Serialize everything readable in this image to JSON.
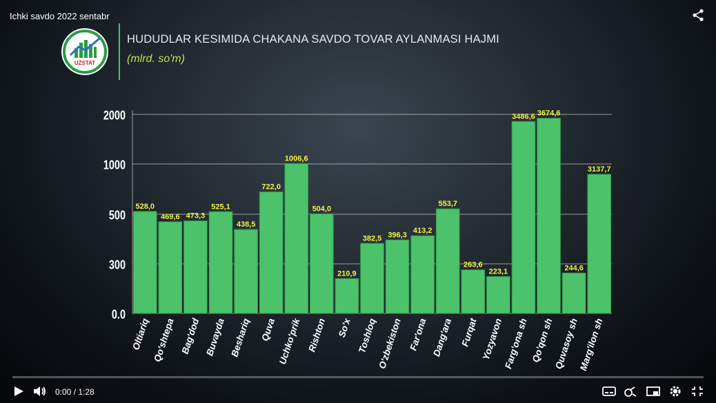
{
  "video": {
    "title": "Ichki savdo 2022 sentabr",
    "current_time": "0:00",
    "separator": " / ",
    "duration": "1:28",
    "progress": 0
  },
  "header": {
    "title": "HUDUDLAR KESIMIDA CHAKANA SAVDO TOVAR AYLANMASI HAJMI",
    "subtitle": "(mlrd. so'm)",
    "logo_text": "UZSTAT"
  },
  "colors": {
    "bar": "#4cc36a",
    "bar_edge": "#2f9a4c",
    "label": "#f2f53c",
    "accent": "#c6e244"
  },
  "icons": [
    "share-icon",
    "play-icon",
    "volume-icon",
    "subtitles-icon",
    "autoplay-icon",
    "miniplayer-icon",
    "settings-icon",
    "exit-fullscreen-icon"
  ],
  "chart_data": {
    "type": "bar",
    "title": "HUDUDLAR KESIMIDA CHAKANA SAVDO TOVAR AYLANMASI HAJMI",
    "subtitle": "(mlrd. so'm)",
    "xlabel": "",
    "ylabel": "",
    "grid": true,
    "y_scale": "non-linear (broken axis)",
    "y_ticks": [
      0,
      300,
      500,
      1000,
      2000
    ],
    "y_tick_labels": [
      "0.0",
      "300",
      "500",
      "1000",
      "2000"
    ],
    "categories": [
      "Oltiariq",
      "Qo'shtepa",
      "Bag'dod",
      "Buvayda",
      "Beshariq",
      "Quva",
      "Uchko'prik",
      "Rishton",
      "So'x",
      "Toshloq",
      "O'zbekiston",
      "Far'ona",
      "Dang'ara",
      "Furqat",
      "Yozyavon",
      "Farg'ona sh",
      "Qo'qon sh",
      "Quvasoy sh",
      "Marg'ilon sh"
    ],
    "values": [
      528.0,
      469.6,
      473.3,
      525.1,
      438.5,
      722.0,
      1006.6,
      504.0,
      210.9,
      382.5,
      396.3,
      413.2,
      553.7,
      263.6,
      223.1,
      3486.6,
      3674.6,
      244.6,
      3137.7
    ],
    "value_labels": [
      "528,0",
      "469,6",
      "473,3",
      "525,1",
      "438,5",
      "722,0",
      "1006,6",
      "504,0",
      "210,9",
      "382,5",
      "396,3",
      "413,2",
      "553,7",
      "263,6",
      "223,1",
      "3486,6",
      "3674,6",
      "244,6",
      "3137,7"
    ]
  }
}
